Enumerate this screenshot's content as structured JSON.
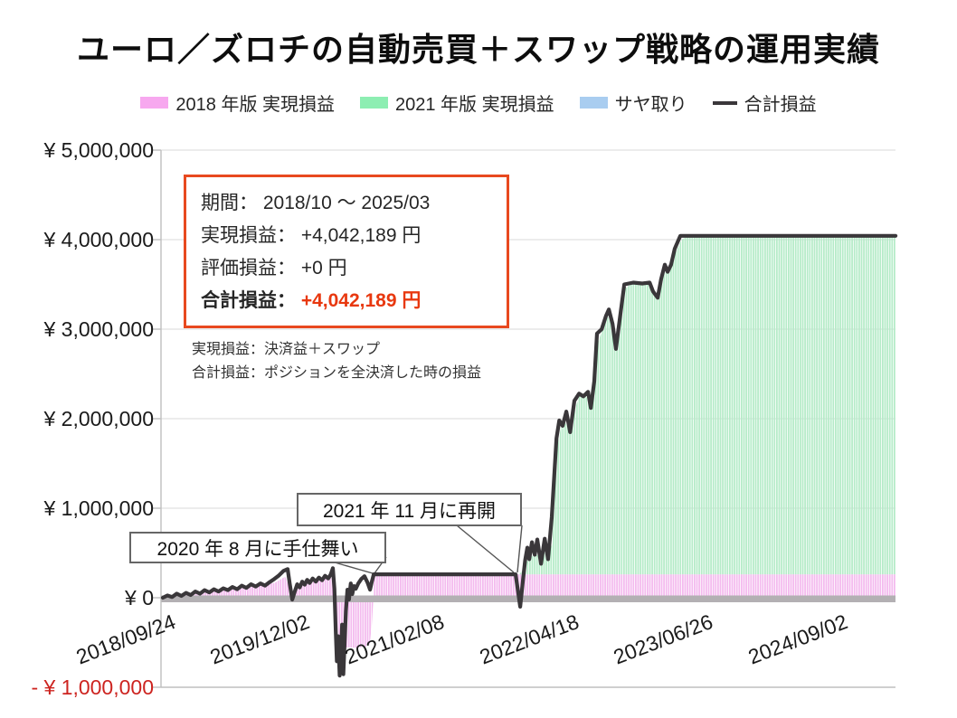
{
  "page": {
    "title": "ユーロ／ズロチの自動売買＋スワップ戦略の運用実績"
  },
  "legend": {
    "items": [
      {
        "label": "2018 年版 実現損益",
        "swatch": "#f7a8ef",
        "type": "box"
      },
      {
        "label": "2021 年版 実現損益",
        "swatch": "#8deeb2",
        "type": "box"
      },
      {
        "label": "サヤ取り",
        "swatch": "#a9cdf0",
        "type": "box"
      },
      {
        "label": "合計損益",
        "swatch": "#3a373a",
        "type": "line"
      }
    ]
  },
  "info_box": {
    "border_color": "#e8491f",
    "rows": [
      {
        "label": "期間：",
        "value": "2018/10 ～ 2025/03",
        "bold": false,
        "value_color": "#262626"
      },
      {
        "label": "実現損益：",
        "value": "+4,042,189 円",
        "bold": false,
        "value_color": "#262626"
      },
      {
        "label": "評価損益：",
        "value": "+0 円",
        "bold": false,
        "value_color": "#262626"
      },
      {
        "label": "合計損益：",
        "value": "+4,042,189 円",
        "bold": true,
        "value_color": "#e8380f"
      }
    ]
  },
  "notes": {
    "line1": "実現損益：決済益＋スワップ",
    "line2": "合計損益：ポジションを全決済した時の損益"
  },
  "annotations": [
    {
      "text": "2020 年 8 月に手仕舞い",
      "target_day": 681
    },
    {
      "text": "2021 年 11 月に再開",
      "target_day": 1139
    }
  ],
  "chart_data": {
    "type": "area",
    "title": "ユーロ／ズロチの自動売買＋スワップ戦略の運用実績",
    "unit": "thousand_yen",
    "ylim": [
      -1000000,
      5000000
    ],
    "x_span_days": 2366,
    "grid_color": "#d9d9d9",
    "axis_color": "#bfbfbf",
    "zero_band_color": "#b3b0b3",
    "y_ticks": [
      {
        "label": "¥ 5,000,000",
        "value": 5000000,
        "color": "#1a1a1a"
      },
      {
        "label": "¥ 4,000,000",
        "value": 4000000,
        "color": "#1a1a1a"
      },
      {
        "label": "¥ 3,000,000",
        "value": 3000000,
        "color": "#1a1a1a"
      },
      {
        "label": "¥ 2,000,000",
        "value": 2000000,
        "color": "#1a1a1a"
      },
      {
        "label": "¥ 1,000,000",
        "value": 1000000,
        "color": "#1a1a1a"
      },
      {
        "label": "¥ 0",
        "value": 0,
        "color": "#1a1a1a"
      },
      {
        "label": "- ¥ 1,000,000",
        "value": -1000000,
        "color": "#cd2420"
      }
    ],
    "x_ticks": [
      {
        "label": "2018/09/24",
        "day": 0
      },
      {
        "label": "2019/12/02",
        "day": 434
      },
      {
        "label": "2021/02/08",
        "day": 868
      },
      {
        "label": "2022/04/18",
        "day": 1302
      },
      {
        "label": "2023/06/26",
        "day": 1736
      },
      {
        "label": "2024/09/02",
        "day": 2170
      }
    ],
    "series": [
      {
        "name": "2018年版 実現損益",
        "type": "bars",
        "color": "#f3baee",
        "base": 0,
        "points": [
          [
            0,
            0
          ],
          [
            30,
            30
          ],
          [
            60,
            45
          ],
          [
            90,
            55
          ],
          [
            120,
            50
          ],
          [
            150,
            75
          ],
          [
            180,
            85
          ],
          [
            210,
            80
          ],
          [
            240,
            105
          ],
          [
            270,
            120
          ],
          [
            300,
            140
          ],
          [
            330,
            150
          ],
          [
            360,
            165
          ],
          [
            395,
            235
          ],
          [
            405,
            150
          ],
          [
            415,
            60
          ],
          [
            430,
            110
          ],
          [
            450,
            150
          ],
          [
            470,
            165
          ],
          [
            490,
            180
          ],
          [
            510,
            195
          ],
          [
            524,
            215
          ],
          [
            535,
            235
          ],
          [
            542,
            250
          ],
          [
            549,
            255
          ],
          [
            553,
            60
          ],
          [
            557,
            -300
          ],
          [
            562,
            -540
          ],
          [
            580,
            -560
          ],
          [
            600,
            -555
          ],
          [
            620,
            -560
          ],
          [
            640,
            -555
          ],
          [
            655,
            -545
          ],
          [
            668,
            -520
          ],
          [
            675,
            -300
          ],
          [
            679,
            -60
          ],
          [
            681,
            262
          ],
          [
            2366,
            262
          ]
        ]
      },
      {
        "name": "2021年版 実現損益",
        "type": "bars",
        "color": "#b5ebc8",
        "base": 262,
        "points": [
          [
            1139,
            262
          ],
          [
            1152,
            265
          ],
          [
            1160,
            300
          ],
          [
            1172,
            380
          ],
          [
            1185,
            450
          ],
          [
            1200,
            480
          ],
          [
            1215,
            470
          ],
          [
            1230,
            500
          ],
          [
            1245,
            520
          ],
          [
            1258,
            600
          ],
          [
            1270,
            1600
          ],
          [
            1285,
            1900
          ],
          [
            1300,
            1950
          ],
          [
            1315,
            1880
          ],
          [
            1330,
            2100
          ],
          [
            1345,
            2250
          ],
          [
            1365,
            2260
          ],
          [
            1382,
            2150
          ],
          [
            1395,
            2350
          ],
          [
            1405,
            2850
          ],
          [
            1420,
            3000
          ],
          [
            1435,
            3120
          ],
          [
            1445,
            3180
          ],
          [
            1455,
            3020
          ],
          [
            1465,
            2800
          ],
          [
            1478,
            3050
          ],
          [
            1492,
            3450
          ],
          [
            1510,
            3500
          ],
          [
            1540,
            3510
          ],
          [
            1570,
            3510
          ],
          [
            1585,
            3430
          ],
          [
            1600,
            3360
          ],
          [
            1612,
            3520
          ],
          [
            1625,
            3680
          ],
          [
            1632,
            3630
          ],
          [
            1642,
            3700
          ],
          [
            1655,
            3850
          ],
          [
            1675,
            4000
          ],
          [
            1695,
            4042.189
          ],
          [
            2366,
            4042.189
          ]
        ]
      },
      {
        "name": "サヤ取り",
        "type": "bars",
        "color": "#a9cdf0",
        "base": 0,
        "points": []
      },
      {
        "name": "合計損益",
        "type": "line",
        "color": "#3a373a",
        "points": [
          [
            0,
            0
          ],
          [
            15,
            25
          ],
          [
            30,
            8
          ],
          [
            45,
            45
          ],
          [
            60,
            20
          ],
          [
            75,
            55
          ],
          [
            90,
            30
          ],
          [
            105,
            70
          ],
          [
            120,
            45
          ],
          [
            135,
            85
          ],
          [
            150,
            60
          ],
          [
            165,
            95
          ],
          [
            180,
            70
          ],
          [
            195,
            105
          ],
          [
            210,
            85
          ],
          [
            225,
            120
          ],
          [
            240,
            95
          ],
          [
            255,
            135
          ],
          [
            270,
            110
          ],
          [
            285,
            150
          ],
          [
            300,
            125
          ],
          [
            315,
            160
          ],
          [
            330,
            135
          ],
          [
            345,
            175
          ],
          [
            360,
            210
          ],
          [
            375,
            250
          ],
          [
            390,
            300
          ],
          [
            403,
            320
          ],
          [
            410,
            150
          ],
          [
            418,
            -20
          ],
          [
            426,
            70
          ],
          [
            434,
            150
          ],
          [
            442,
            115
          ],
          [
            450,
            180
          ],
          [
            458,
            145
          ],
          [
            466,
            200
          ],
          [
            474,
            165
          ],
          [
            484,
            215
          ],
          [
            494,
            180
          ],
          [
            504,
            225
          ],
          [
            514,
            195
          ],
          [
            524,
            245
          ],
          [
            534,
            215
          ],
          [
            542,
            260
          ],
          [
            549,
            330
          ],
          [
            554,
            100
          ],
          [
            558,
            -350
          ],
          [
            562,
            -710
          ],
          [
            566,
            -430
          ],
          [
            571,
            -870
          ],
          [
            576,
            -600
          ],
          [
            579,
            -300
          ],
          [
            583,
            -855
          ],
          [
            587,
            -500
          ],
          [
            591,
            -150
          ],
          [
            596,
            90
          ],
          [
            601,
            -20
          ],
          [
            607,
            160
          ],
          [
            612,
            40
          ],
          [
            617,
            130
          ],
          [
            623,
            100
          ],
          [
            631,
            160
          ],
          [
            641,
            210
          ],
          [
            651,
            240
          ],
          [
            661,
            170
          ],
          [
            669,
            90
          ],
          [
            675,
            180
          ],
          [
            681,
            262
          ],
          [
            1139,
            262
          ],
          [
            1154,
            -100
          ],
          [
            1163,
            200
          ],
          [
            1170,
            420
          ],
          [
            1177,
            560
          ],
          [
            1183,
            430
          ],
          [
            1192,
            620
          ],
          [
            1201,
            480
          ],
          [
            1209,
            650
          ],
          [
            1221,
            380
          ],
          [
            1233,
            660
          ],
          [
            1244,
            430
          ],
          [
            1256,
            900
          ],
          [
            1271,
            1780
          ],
          [
            1280,
            1980
          ],
          [
            1291,
            1920
          ],
          [
            1303,
            2080
          ],
          [
            1315,
            1850
          ],
          [
            1329,
            2200
          ],
          [
            1344,
            2280
          ],
          [
            1358,
            2250
          ],
          [
            1373,
            2300
          ],
          [
            1382,
            2120
          ],
          [
            1393,
            2420
          ],
          [
            1402,
            2950
          ],
          [
            1417,
            3000
          ],
          [
            1431,
            3150
          ],
          [
            1440,
            3220
          ],
          [
            1452,
            3060
          ],
          [
            1463,
            2780
          ],
          [
            1475,
            3100
          ],
          [
            1490,
            3500
          ],
          [
            1519,
            3520
          ],
          [
            1548,
            3510
          ],
          [
            1572,
            3520
          ],
          [
            1583,
            3420
          ],
          [
            1598,
            3350
          ],
          [
            1609,
            3560
          ],
          [
            1621,
            3720
          ],
          [
            1630,
            3640
          ],
          [
            1641,
            3720
          ],
          [
            1653,
            3900
          ],
          [
            1671,
            4042.189
          ],
          [
            2366,
            4042.189
          ]
        ]
      }
    ],
    "final_total_yen": 4042189
  }
}
